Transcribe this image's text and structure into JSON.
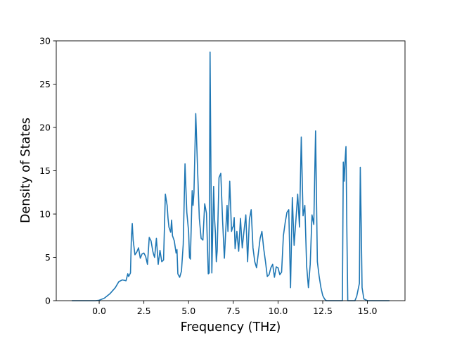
{
  "chart_data": {
    "type": "line",
    "title": "",
    "xlabel": "Frequency (THz)",
    "ylabel": "Density of States",
    "xlim": [
      -2.4,
      17.1
    ],
    "ylim": [
      0,
      30
    ],
    "xticks": [
      0.0,
      2.5,
      5.0,
      7.5,
      10.0,
      12.5,
      15.0
    ],
    "xtick_labels": [
      "0.0",
      "2.5",
      "5.0",
      "7.5",
      "10.0",
      "12.5",
      "15.0"
    ],
    "yticks": [
      0,
      5,
      10,
      15,
      20,
      25,
      30
    ],
    "ytick_labels": [
      "0",
      "5",
      "10",
      "15",
      "20",
      "25",
      "30"
    ],
    "grid": false,
    "legend": "none",
    "line_color": "#1f77b4",
    "series": [
      {
        "x": [
          -1.5,
          -0.2,
          0.0,
          0.3,
          0.6,
          0.9,
          1.1,
          1.3,
          1.5,
          1.6,
          1.65,
          1.7,
          1.75,
          1.8,
          1.85,
          1.9,
          2.0,
          2.1,
          2.2,
          2.3,
          2.4,
          2.5,
          2.6,
          2.7,
          2.8,
          2.9,
          3.0,
          3.05,
          3.1,
          3.2,
          3.3,
          3.4,
          3.5,
          3.6,
          3.7,
          3.8,
          3.85,
          3.9,
          4.0,
          4.05,
          4.1,
          4.2,
          4.3,
          4.35,
          4.4,
          4.5,
          4.6,
          4.7,
          4.8,
          4.9,
          5.0,
          5.05,
          5.1,
          5.2,
          5.25,
          5.3,
          5.4,
          5.5,
          5.6,
          5.7,
          5.8,
          5.9,
          6.0,
          6.1,
          6.15,
          6.2,
          6.25,
          6.3,
          6.4,
          6.45,
          6.5,
          6.55,
          6.6,
          6.7,
          6.8,
          6.9,
          7.0,
          7.1,
          7.15,
          7.2,
          7.3,
          7.4,
          7.45,
          7.5,
          7.55,
          7.6,
          7.7,
          7.8,
          7.9,
          8.0,
          8.1,
          8.2,
          8.3,
          8.4,
          8.5,
          8.6,
          8.7,
          8.8,
          8.9,
          9.0,
          9.1,
          9.2,
          9.3,
          9.4,
          9.5,
          9.6,
          9.7,
          9.8,
          9.9,
          10.0,
          10.1,
          10.2,
          10.3,
          10.4,
          10.5,
          10.6,
          10.7,
          10.8,
          10.9,
          11.0,
          11.1,
          11.2,
          11.3,
          11.4,
          11.5,
          11.6,
          11.7,
          11.8,
          11.9,
          12.0,
          12.1,
          12.2,
          12.3,
          12.4,
          12.5,
          12.6,
          12.7,
          13.0,
          13.5,
          13.6,
          13.65,
          13.7,
          13.75,
          13.8,
          13.85,
          13.9,
          13.95,
          14.0,
          14.2,
          14.3,
          14.4,
          14.5,
          14.55,
          14.6,
          14.65,
          14.7,
          14.8,
          15.0,
          16.2
        ],
        "y": [
          0.0,
          0.0,
          0.05,
          0.3,
          0.8,
          1.5,
          2.2,
          2.4,
          2.3,
          3.1,
          2.8,
          3.0,
          3.2,
          7.2,
          8.9,
          7.0,
          5.3,
          5.6,
          6.1,
          4.9,
          5.4,
          5.5,
          5.1,
          4.2,
          7.3,
          6.9,
          5.7,
          5.3,
          5.0,
          7.2,
          4.2,
          5.8,
          4.5,
          4.7,
          12.3,
          11.0,
          9.5,
          8.5,
          7.9,
          9.3,
          7.5,
          6.9,
          5.5,
          5.9,
          3.1,
          2.7,
          3.4,
          6.5,
          15.8,
          10.2,
          8.0,
          5.0,
          4.8,
          12.7,
          11.0,
          12.5,
          21.6,
          15.3,
          9.5,
          7.2,
          7.0,
          11.2,
          10.1,
          3.1,
          3.2,
          28.7,
          14.8,
          3.2,
          13.2,
          9.5,
          7.8,
          4.5,
          5.8,
          14.2,
          14.7,
          9.3,
          4.9,
          9.0,
          11.0,
          8.0,
          13.8,
          8.0,
          8.4,
          8.6,
          9.6,
          6.0,
          8.0,
          5.7,
          9.5,
          6.1,
          8.1,
          9.9,
          4.5,
          9.4,
          10.5,
          6.1,
          4.5,
          3.8,
          5.5,
          7.2,
          8.0,
          6.0,
          4.5,
          2.8,
          3.0,
          3.8,
          4.2,
          2.7,
          3.9,
          3.8,
          3.0,
          3.3,
          7.5,
          9.0,
          10.2,
          10.5,
          1.5,
          11.9,
          6.4,
          9.3,
          12.3,
          8.5,
          18.9,
          9.8,
          11.0,
          4.0,
          1.5,
          4.2,
          9.9,
          8.8,
          19.6,
          4.5,
          2.8,
          1.5,
          0.6,
          0.2,
          0.0,
          0.0,
          0.0,
          0.0,
          16.0,
          13.8,
          16.2,
          17.8,
          8.0,
          0.0,
          0.0,
          0.0,
          0.0,
          0.0,
          0.5,
          1.5,
          2.0,
          15.4,
          9.0,
          1.5,
          0.2,
          0.0,
          0.0
        ]
      }
    ]
  }
}
